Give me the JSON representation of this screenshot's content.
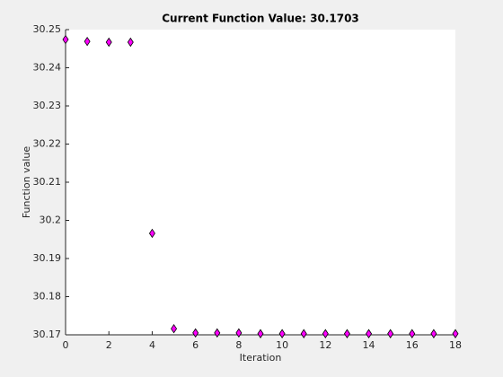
{
  "chart_data": {
    "type": "scatter",
    "title": "Current Function Value: 30.1703",
    "xlabel": "Iteration",
    "ylabel": "Function value",
    "x": [
      0,
      1,
      2,
      3,
      4,
      5,
      6,
      7,
      8,
      9,
      10,
      11,
      12,
      13,
      14,
      15,
      16,
      17,
      18
    ],
    "values": [
      30.2474,
      30.2469,
      30.2467,
      30.2467,
      30.1966,
      30.1716,
      30.1705,
      30.1705,
      30.1705,
      30.1703,
      30.1703,
      30.1703,
      30.1703,
      30.1703,
      30.1703,
      30.1703,
      30.1703,
      30.1703,
      30.1703
    ],
    "color": "#ff00ff",
    "xlim": [
      0,
      18
    ],
    "xticks": [
      0,
      2,
      4,
      6,
      8,
      10,
      12,
      14,
      16,
      18
    ],
    "ylim": [
      30.17,
      30.25
    ],
    "yticks": [
      30.17,
      30.18,
      30.19,
      30.2,
      30.21,
      30.22,
      30.23,
      30.24,
      30.25
    ],
    "grid": false
  }
}
